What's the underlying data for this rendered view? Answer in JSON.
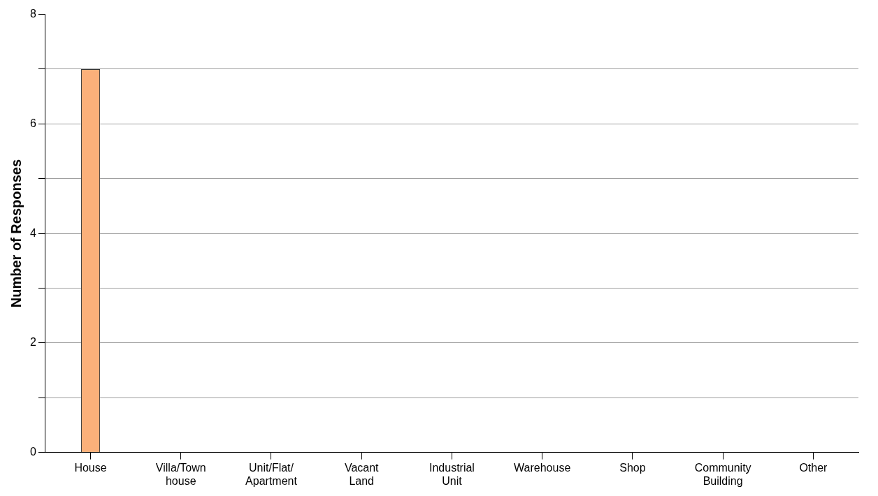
{
  "chart_data": {
    "type": "bar",
    "ylabel": "Number of Responses",
    "categories": [
      "House",
      "Villa/Town house",
      "Unit/Flat/ Apartment",
      "Vacant Land",
      "Industrial Unit",
      "Warehouse",
      "Shop",
      "Community Building",
      "Other"
    ],
    "values": [
      7,
      0,
      0,
      0,
      0,
      0,
      0,
      0,
      0
    ],
    "color": "#fbb07a",
    "ylim": [
      0,
      8
    ],
    "yticks": [
      0,
      {
        "value": 1,
        "label": null
      },
      2,
      {
        "value": 3,
        "label": null
      },
      4,
      {
        "value": 5,
        "label": null
      },
      6,
      {
        "value": 7,
        "label": null
      },
      8
    ],
    "grid": "y",
    "legend": false
  }
}
